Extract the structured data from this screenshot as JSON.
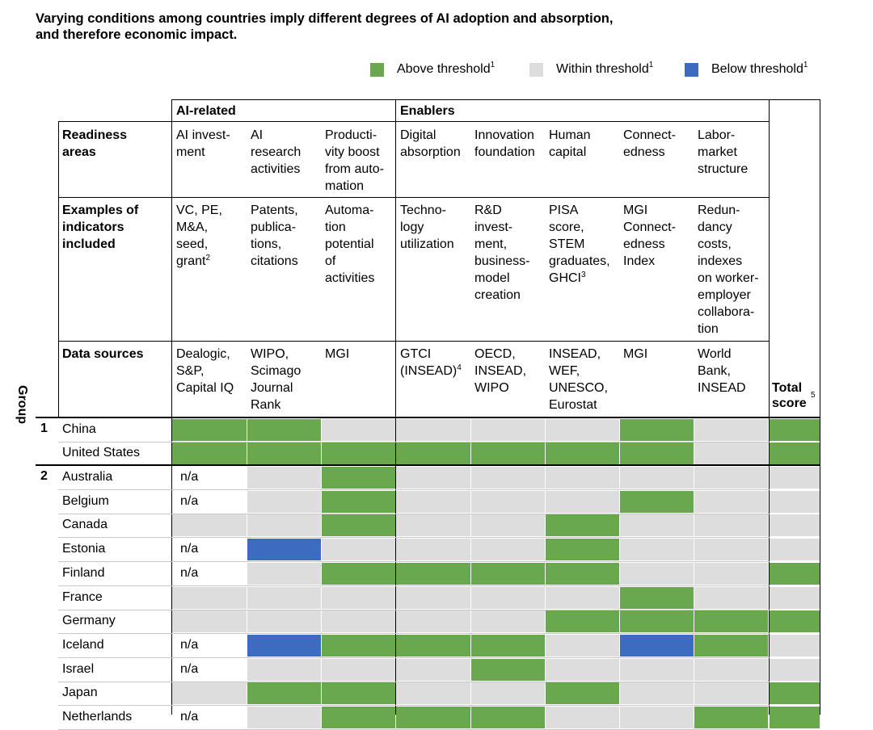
{
  "title": {
    "line1": "Varying conditions among countries imply different degrees of AI adoption and absorption,",
    "line2": "and therefore economic impact."
  },
  "legend": [
    {
      "label": "Above threshold",
      "sup": "1",
      "color": "#6aa84f"
    },
    {
      "label": "Within threshold",
      "sup": "1",
      "color": "#dddddd"
    },
    {
      "label": "Below threshold",
      "sup": "1",
      "color": "#3c6bbf"
    }
  ],
  "header": {
    "group_ai": "AI-related",
    "group_enablers": "Enablers",
    "row_readiness": "Readiness\nareas",
    "row_examples": "Examples of\nindicators\nincluded",
    "row_sources": "Data sources",
    "group_col": "Group",
    "total": "Total\nscore",
    "total_sup": "5",
    "columns": [
      {
        "area": "AI invest-\nment",
        "examples": "VC, PE,\nM&A,\nseed,\ngrant",
        "examples_sup": "2",
        "sources": "Dealogic,\nS&P,\nCapital IQ"
      },
      {
        "area": "AI\nresearch\nactivities",
        "examples": "Patents,\npublica-\ntions,\ncitations",
        "sources": "WIPO,\nScimago\nJournal\nRank"
      },
      {
        "area": "Producti-\nvity boost\nfrom auto-\nmation",
        "examples": "Automa-\ntion\npotential\nof\nactivities",
        "sources": "MGI"
      },
      {
        "area": "Digital\nabsorption",
        "examples": "Techno-\nlogy\nutilization",
        "sources": "GTCI\n(INSEAD)",
        "sources_sup": "4"
      },
      {
        "area": "Innovation\nfoundation",
        "examples": "R&D\ninvest-\nment,\nbusiness-\nmodel\ncreation",
        "sources": "OECD,\nINSEAD,\nWIPO"
      },
      {
        "area": "Human\ncapital",
        "examples": "PISA\nscore,\nSTEM\ngraduates,\nGHCI",
        "examples_sup": "3",
        "sources": "INSEAD,\nWEF,\nUNESCO,\nEurostat"
      },
      {
        "area": "Connect-\nedness",
        "examples": "MGI\nConnect-\nedness\nIndex",
        "sources": "MGI"
      },
      {
        "area": "Labor-\nmarket\nstructure",
        "examples": "Redun-\ndancy\ncosts,\nindexes\non worker-\nemployer\ncollabora-\ntion",
        "sources": "World\nBank,\nINSEAD"
      }
    ]
  },
  "colors": {
    "g": "#6aa84f",
    "x": "#dddddd",
    "b": "#3c6bbf",
    "w": "#ffffff"
  },
  "na_text": "n/a",
  "rows": [
    {
      "group": "1",
      "country": "China",
      "cells": [
        "g",
        "g",
        "x",
        "x",
        "x",
        "x",
        "g",
        "x",
        "g"
      ]
    },
    {
      "group": "",
      "country": "United States",
      "cells": [
        "g",
        "g",
        "g",
        "g",
        "g",
        "g",
        "g",
        "x",
        "g"
      ]
    },
    {
      "group": "2",
      "country": "Australia",
      "cells": [
        "n",
        "x",
        "g",
        "x",
        "x",
        "x",
        "x",
        "x",
        "x"
      ]
    },
    {
      "group": "",
      "country": "Belgium",
      "cells": [
        "n",
        "x",
        "g",
        "x",
        "x",
        "x",
        "g",
        "x",
        "x"
      ]
    },
    {
      "group": "",
      "country": "Canada",
      "cells": [
        "x",
        "x",
        "g",
        "x",
        "x",
        "g",
        "x",
        "x",
        "x"
      ]
    },
    {
      "group": "",
      "country": "Estonia",
      "cells": [
        "n",
        "b",
        "x",
        "x",
        "x",
        "g",
        "x",
        "x",
        "x"
      ]
    },
    {
      "group": "",
      "country": "Finland",
      "cells": [
        "n",
        "x",
        "g",
        "g",
        "g",
        "g",
        "x",
        "x",
        "g"
      ]
    },
    {
      "group": "",
      "country": "France",
      "cells": [
        "x",
        "x",
        "x",
        "x",
        "x",
        "x",
        "g",
        "x",
        "x"
      ]
    },
    {
      "group": "",
      "country": "Germany",
      "cells": [
        "x",
        "x",
        "x",
        "x",
        "x",
        "g",
        "g",
        "g",
        "g"
      ]
    },
    {
      "group": "",
      "country": "Iceland",
      "cells": [
        "n",
        "b",
        "g",
        "g",
        "g",
        "x",
        "b",
        "g",
        "x"
      ]
    },
    {
      "group": "",
      "country": "Israel",
      "cells": [
        "n",
        "x",
        "x",
        "x",
        "g",
        "x",
        "x",
        "x",
        "x"
      ]
    },
    {
      "group": "",
      "country": "Japan",
      "cells": [
        "x",
        "g",
        "g",
        "x",
        "x",
        "g",
        "x",
        "x",
        "g"
      ]
    },
    {
      "group": "",
      "country": "Netherlands",
      "cells": [
        "n",
        "x",
        "g",
        "g",
        "g",
        "x",
        "x",
        "g",
        "g"
      ]
    }
  ]
}
